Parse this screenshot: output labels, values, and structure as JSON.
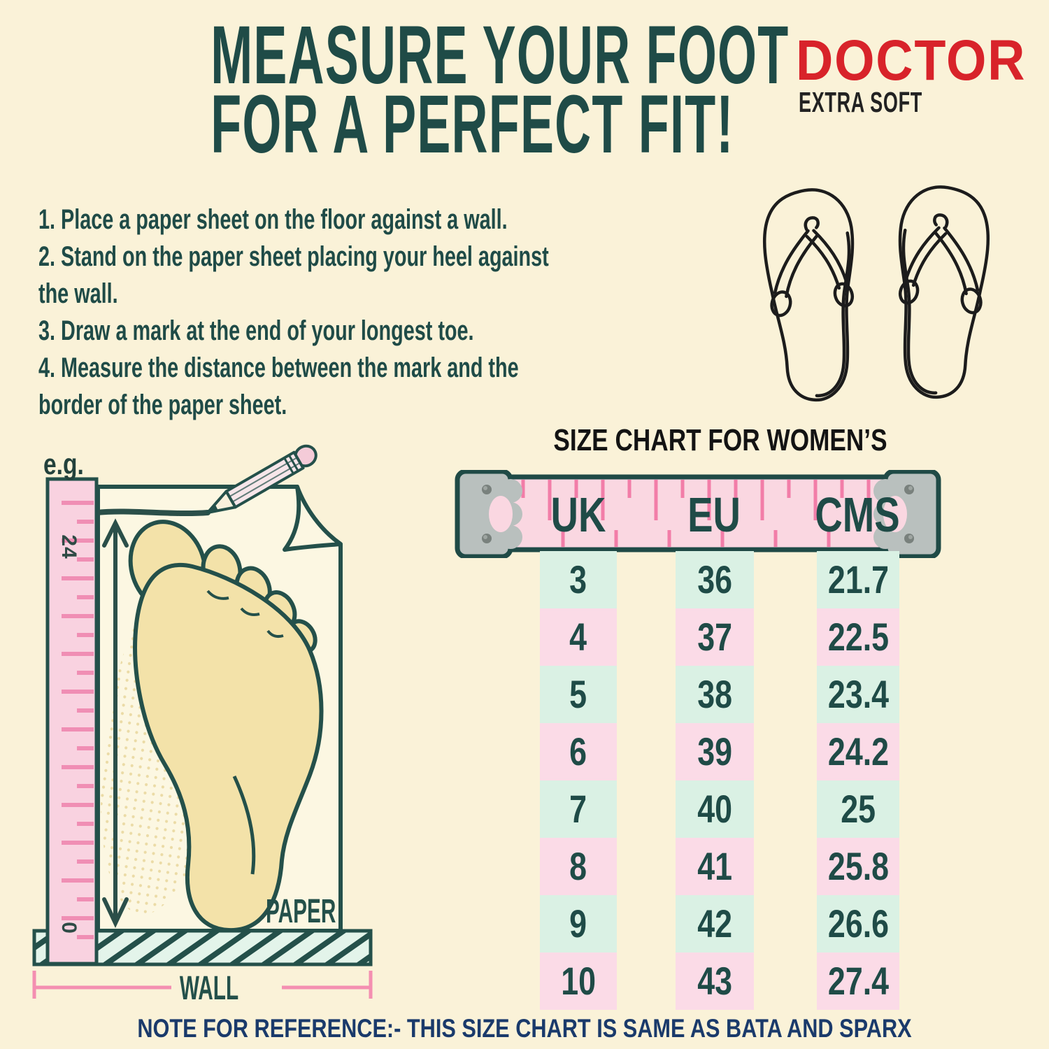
{
  "header": {
    "title_line1": "MEASURE YOUR FOOT",
    "title_line2": "FOR A PERFECT FIT!",
    "brand_name": "DOCTOR",
    "brand_tagline": "EXTRA SOFT"
  },
  "instructions": [
    "1. Place a paper sheet on the floor against a wall.",
    "2. Stand on the paper sheet placing your heel against\nthe wall.",
    "3. Draw a mark at the end of your longest toe.",
    "4. Measure the distance between the mark and the\nborder of the paper sheet."
  ],
  "size_chart": {
    "heading": "SIZE CHART FOR WOMEN’S",
    "columns": [
      "UK",
      "EU",
      "CMS"
    ],
    "rows": [
      [
        "3",
        "36",
        "21.7"
      ],
      [
        "4",
        "37",
        "22.5"
      ],
      [
        "5",
        "38",
        "23.4"
      ],
      [
        "6",
        "39",
        "24.2"
      ],
      [
        "7",
        "40",
        "25"
      ],
      [
        "8",
        "41",
        "25.8"
      ],
      [
        "9",
        "42",
        "26.6"
      ],
      [
        "10",
        "43",
        "27.4"
      ]
    ]
  },
  "illustration": {
    "example_label": "e.g.",
    "ruler_max": "24",
    "ruler_min": "0",
    "paper_label": "PAPER",
    "wall_label": "WALL"
  },
  "note": "NOTE FOR REFERENCE:- THIS SIZE CHART IS SAME AS BATA AND SPARX",
  "colors": {
    "background": "#FAF2D8",
    "teal": "#1F4B47",
    "red": "#D8232A",
    "black": "#131313",
    "navy": "#1A3A6B",
    "tape_pink": "#FAD7E1",
    "tick_pink": "#F27DA8",
    "clip_grey": "#B9C0BE",
    "mint_cell": "#DAF1E4",
    "rose_cell": "#FBDBE7",
    "foot": "#F3E2A9",
    "paper": "#FCF7E2",
    "ruler_pink": "#F9D2E0",
    "wall_mint": "#E3F4EA"
  }
}
